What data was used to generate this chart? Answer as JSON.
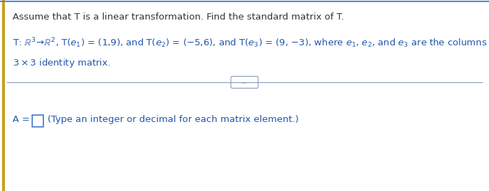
{
  "bg_color": "#ffffff",
  "left_border_color": "#c8a000",
  "title_text": "Assume that T is a linear transformation. Find the standard matrix of T.",
  "title_color": "#333333",
  "title_fontsize": 9.5,
  "body_color": "#2255aa",
  "body_fontsize": 9.5,
  "divider_color": "#8899bb",
  "dots_text": "...",
  "dots_border_color": "#8899bb",
  "answer_label": "A = ",
  "answer_hint": "(Type an integer or decimal for each matrix element.)",
  "box_border_color": "#4477cc",
  "line1": "T: ℝ³→ℝ², T(e₁) = (1,9), and T(e₂) = (−5,6), and T(e₃) = (9, −3), where e₁, e₂, and e₃ are the columns of the",
  "line2": "3×3 identity matrix."
}
